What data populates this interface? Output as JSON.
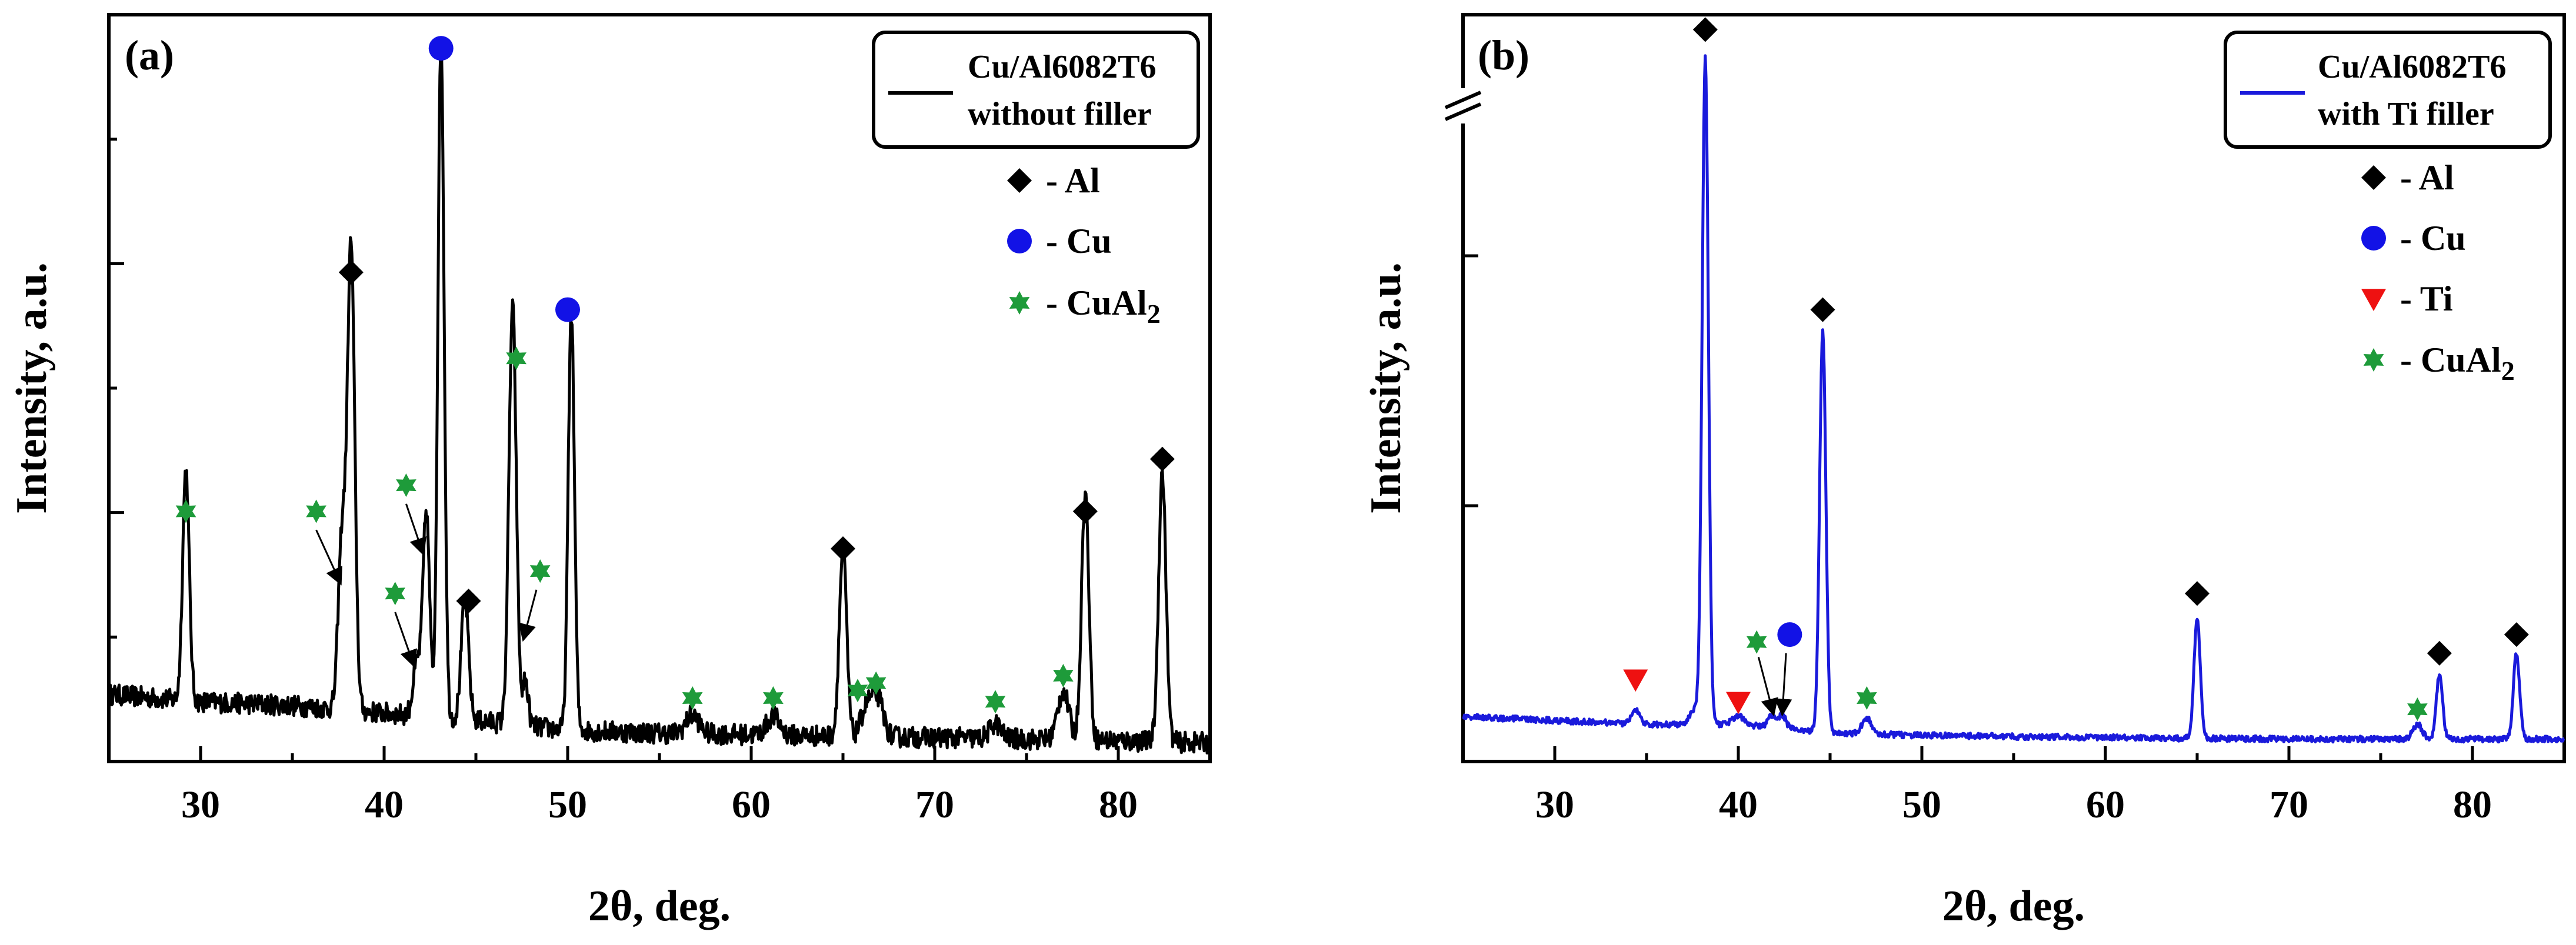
{
  "colors": {
    "pattern_a": "#000000",
    "pattern_b": "#1a1adb",
    "al": "#000000",
    "cu": "#1212e6",
    "ti": "#ee1111",
    "cual2": "#1e9b3a"
  },
  "icons": {
    "al": "diamond-marker",
    "cu": "circle-marker",
    "ti": "triangle-down-marker",
    "cual2": "six-point-star-marker"
  },
  "chart_data": [
    {
      "type": "line",
      "panel_label": "(a)",
      "title": "",
      "xlabel": "2θ, deg.",
      "ylabel": "Intensity, a.u.",
      "xlim": [
        25,
        85
      ],
      "ylim": [
        0,
        100
      ],
      "xticks": [
        "30",
        "40",
        "50",
        "60",
        "70",
        "80"
      ],
      "grid": false,
      "axis_break": false,
      "legend": {
        "line_label_1": "Cu/Al6082T6",
        "line_label_2": "without filler",
        "phases": [
          {
            "key": "al",
            "label": "- Al"
          },
          {
            "key": "cu",
            "label": "- Cu"
          },
          {
            "key": "cual2",
            "label": "- CuAl",
            "sub": "2"
          }
        ]
      },
      "series": [
        {
          "name": "Cu/Al6082T6 without filler",
          "baseline": [
            [
              25,
              9
            ],
            [
              30,
              8
            ],
            [
              35,
              7.5
            ],
            [
              40,
              6.5
            ],
            [
              45,
              5.5
            ],
            [
              50,
              4.2
            ],
            [
              55,
              3.8
            ],
            [
              60,
              3.6
            ],
            [
              65,
              3.4
            ],
            [
              70,
              3.2
            ],
            [
              75,
              3
            ],
            [
              80,
              2.8
            ],
            [
              85,
              2.5
            ]
          ],
          "peaks": [
            [
              29.2,
              31,
              0.18
            ],
            [
              37.7,
              23,
              0.2
            ],
            [
              38.2,
              62,
              0.2
            ],
            [
              41.8,
              7,
              0.22
            ],
            [
              42.3,
              27,
              0.18
            ],
            [
              43.1,
              91,
              0.17
            ],
            [
              44.4,
              16,
              0.2
            ],
            [
              47.0,
              56,
              0.2
            ],
            [
              47.7,
              6,
              0.15
            ],
            [
              50.2,
              56,
              0.17
            ],
            [
              56.8,
              2.5,
              0.35
            ],
            [
              61.2,
              2.5,
              0.35
            ],
            [
              65.0,
              25,
              0.2
            ],
            [
              66.3,
              4,
              0.3
            ],
            [
              66.9,
              5,
              0.3
            ],
            [
              73.3,
              2,
              0.3
            ],
            [
              77.0,
              6.5,
              0.3
            ],
            [
              78.2,
              33,
              0.2
            ],
            [
              82.4,
              36,
              0.2
            ]
          ],
          "noise": 1.4
        }
      ],
      "markers": [
        {
          "phase": "cual2",
          "x": 29.2,
          "y": 33.5
        },
        {
          "phase": "cual2",
          "x": 36.3,
          "y": 33.5
        },
        {
          "phase": "cual2",
          "x": 41.2,
          "y": 37
        },
        {
          "phase": "cual2",
          "x": 40.6,
          "y": 22.5
        },
        {
          "phase": "cual2",
          "x": 47.2,
          "y": 54
        },
        {
          "phase": "cual2",
          "x": 48.5,
          "y": 25.5
        },
        {
          "phase": "cual2",
          "x": 56.8,
          "y": 8.5
        },
        {
          "phase": "cual2",
          "x": 61.2,
          "y": 8.5
        },
        {
          "phase": "cual2",
          "x": 65.8,
          "y": 9.5
        },
        {
          "phase": "cual2",
          "x": 66.8,
          "y": 10.5
        },
        {
          "phase": "cual2",
          "x": 73.3,
          "y": 8
        },
        {
          "phase": "cual2",
          "x": 77.0,
          "y": 11.5
        },
        {
          "phase": "al",
          "x": 38.2,
          "y": 65.5
        },
        {
          "phase": "al",
          "x": 44.6,
          "y": 21.5
        },
        {
          "phase": "al",
          "x": 65.0,
          "y": 28.5
        },
        {
          "phase": "al",
          "x": 78.2,
          "y": 33.5
        },
        {
          "phase": "al",
          "x": 82.4,
          "y": 40.5
        },
        {
          "phase": "cu",
          "x": 43.1,
          "y": 95.5
        },
        {
          "phase": "cu",
          "x": 50.0,
          "y": 60.5
        }
      ],
      "arrows": [
        {
          "from": [
            36.3,
            31
          ],
          "to": [
            37.6,
            24
          ]
        },
        {
          "from": [
            41.2,
            34.5
          ],
          "to": [
            42.1,
            28
          ]
        },
        {
          "from": [
            40.6,
            20
          ],
          "to": [
            41.6,
            13
          ]
        },
        {
          "from": [
            48.3,
            23
          ],
          "to": [
            47.6,
            16.5
          ]
        }
      ]
    },
    {
      "type": "line",
      "panel_label": "(b)",
      "title": "",
      "xlabel": "2θ, deg.",
      "ylabel": "Intensity, a.u.",
      "xlim": [
        25,
        85
      ],
      "ylim": [
        0,
        100
      ],
      "xticks": [
        "30",
        "40",
        "50",
        "60",
        "70",
        "80"
      ],
      "grid": false,
      "axis_break": true,
      "legend": {
        "line_label_1": "Cu/Al6082T6",
        "line_label_2": "with Ti filler",
        "phases": [
          {
            "key": "al",
            "label": "- Al"
          },
          {
            "key": "cu",
            "label": "- Cu"
          },
          {
            "key": "ti",
            "label": "- Ti"
          },
          {
            "key": "cual2",
            "label": "- CuAl",
            "sub": "2"
          }
        ]
      },
      "series": [
        {
          "name": "Cu/Al6082T6 with Ti filler",
          "baseline": [
            [
              25,
              6
            ],
            [
              30,
              5.5
            ],
            [
              35,
              5
            ],
            [
              37,
              5
            ],
            [
              40,
              5
            ],
            [
              45,
              3.8
            ],
            [
              50,
              3.5
            ],
            [
              60,
              3.2
            ],
            [
              70,
              3
            ],
            [
              80,
              3
            ],
            [
              85,
              3
            ]
          ],
          "peaks": [
            [
              34.4,
              2,
              0.2
            ],
            [
              37.6,
              2,
              0.25
            ],
            [
              38.2,
              89,
              0.17
            ],
            [
              40.0,
              1.2,
              0.3
            ],
            [
              41.8,
              1.5,
              0.2
            ],
            [
              42.4,
              1.8,
              0.2
            ],
            [
              44.6,
              54,
              0.17
            ],
            [
              47.0,
              2.2,
              0.25
            ],
            [
              65.0,
              16,
              0.17
            ],
            [
              77.0,
              2,
              0.25
            ],
            [
              78.2,
              8.5,
              0.17
            ],
            [
              82.4,
              11.5,
              0.17
            ]
          ],
          "noise": 0.4
        }
      ],
      "markers": [
        {
          "phase": "al",
          "x": 38.2,
          "y": 98
        },
        {
          "phase": "al",
          "x": 44.6,
          "y": 60.5
        },
        {
          "phase": "al",
          "x": 65.0,
          "y": 22.5
        },
        {
          "phase": "al",
          "x": 78.2,
          "y": 14.5
        },
        {
          "phase": "al",
          "x": 82.4,
          "y": 17
        },
        {
          "phase": "ti",
          "x": 34.4,
          "y": 11
        },
        {
          "phase": "ti",
          "x": 40.0,
          "y": 8
        },
        {
          "phase": "cu",
          "x": 42.8,
          "y": 17
        },
        {
          "phase": "cual2",
          "x": 41.0,
          "y": 16
        },
        {
          "phase": "cual2",
          "x": 47.0,
          "y": 8.5
        },
        {
          "phase": "cual2",
          "x": 77.0,
          "y": 7
        }
      ],
      "arrows": [
        {
          "from": [
            41.1,
            14
          ],
          "to": [
            41.9,
            6.5
          ]
        },
        {
          "from": [
            42.6,
            14.5
          ],
          "to": [
            42.4,
            6.5
          ]
        }
      ]
    }
  ]
}
